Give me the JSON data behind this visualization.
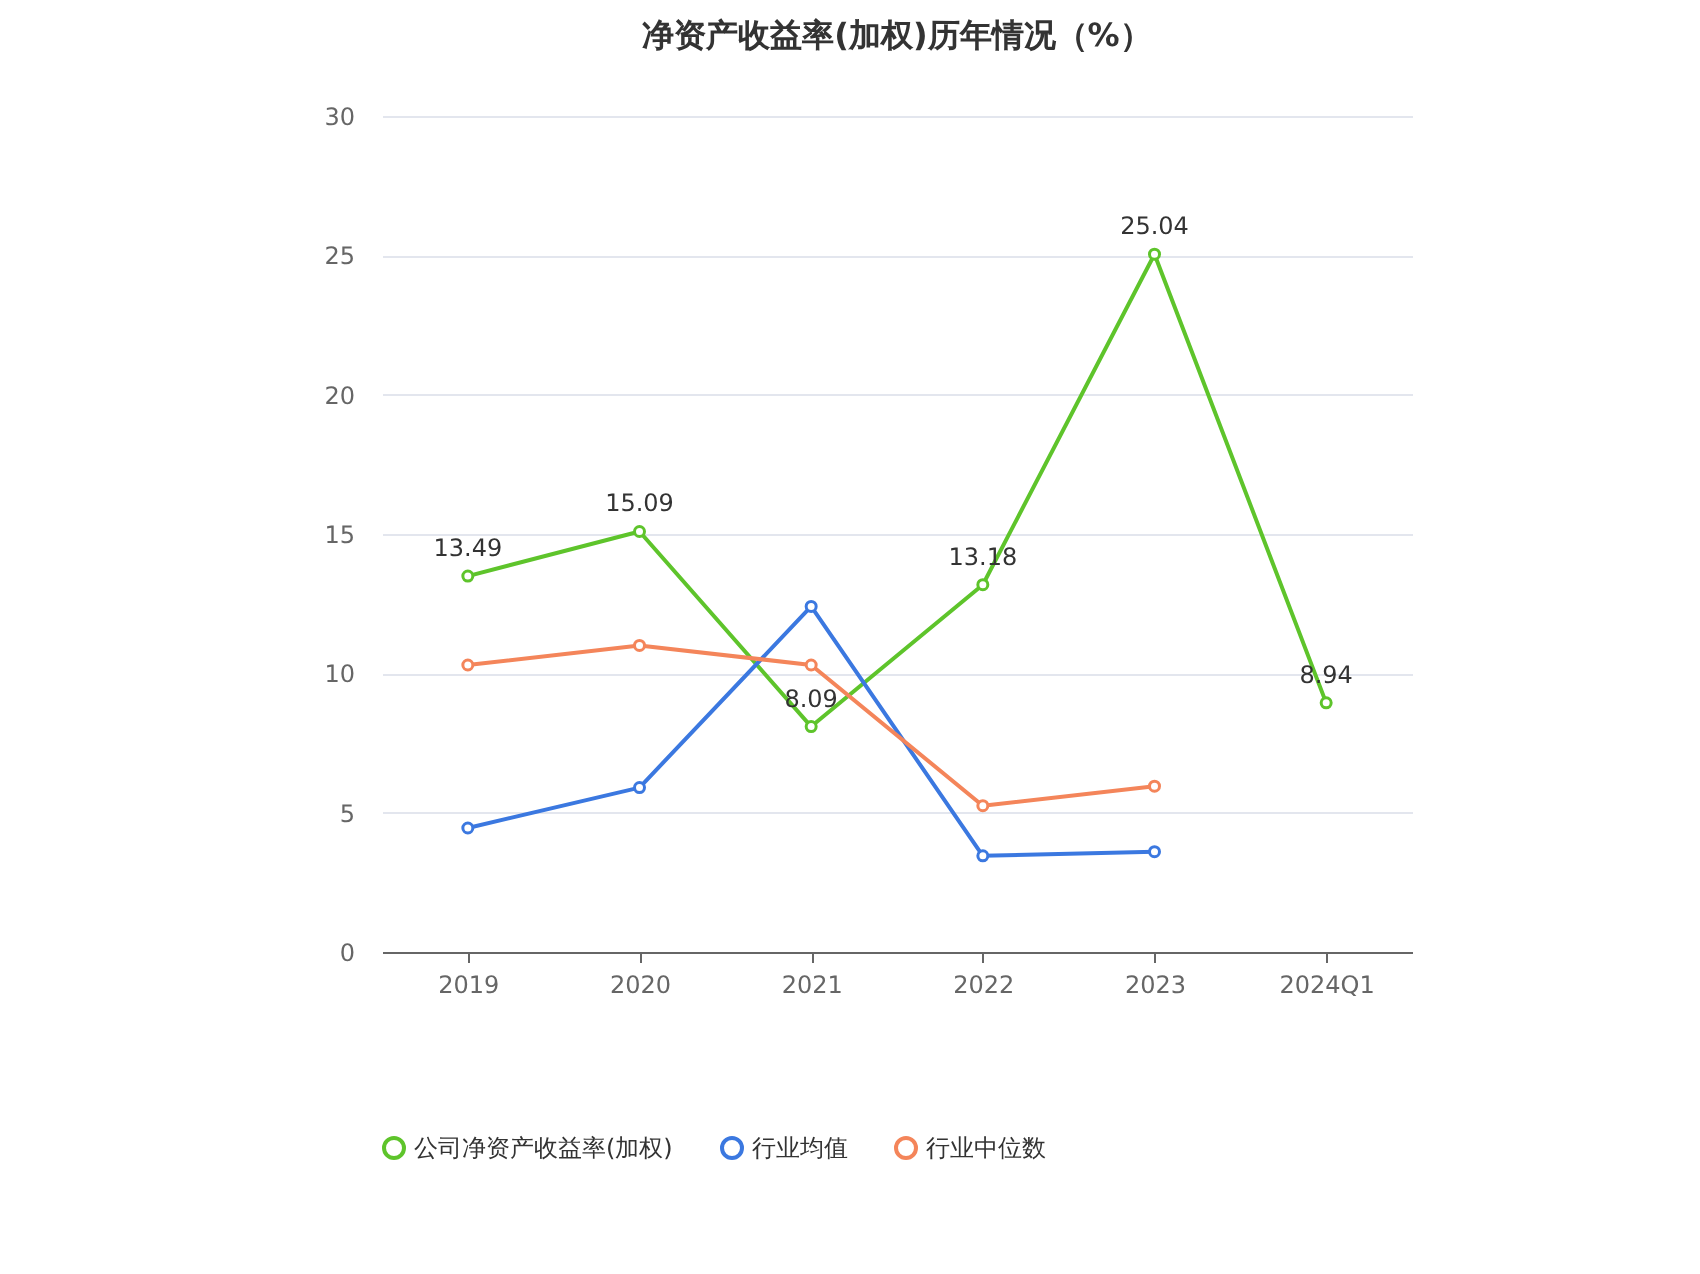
{
  "chart_data": {
    "type": "line",
    "title": "净资产收益率(加权)历年情况（%）",
    "categories": [
      "2019",
      "2020",
      "2021",
      "2022",
      "2023",
      "2024Q1"
    ],
    "series": [
      {
        "name": "公司净资产收益率(加权)",
        "color": "#5ec42b",
        "values": [
          13.49,
          15.09,
          8.09,
          13.18,
          25.04,
          8.94
        ],
        "value_labels": [
          "13.49",
          "15.09",
          "8.09",
          "13.18",
          "25.04",
          "8.94"
        ]
      },
      {
        "name": "行业均值",
        "color": "#3b78e0",
        "values": [
          4.45,
          5.9,
          12.4,
          3.45,
          3.6,
          null
        ]
      },
      {
        "name": "行业中位数",
        "color": "#f4855a",
        "values": [
          10.3,
          11.0,
          10.3,
          5.25,
          5.95,
          null
        ]
      }
    ],
    "ylim": [
      0,
      30
    ],
    "yticks": [
      0,
      5,
      10,
      15,
      20,
      25,
      30
    ],
    "grid": "y",
    "legend": "bottom",
    "marker": "circle"
  }
}
